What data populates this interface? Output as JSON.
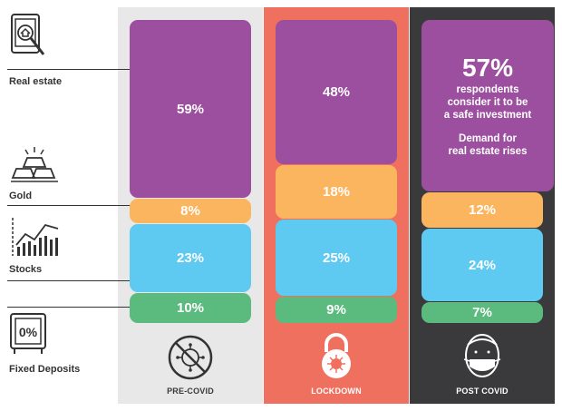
{
  "chart_data": {
    "type": "bar",
    "stacked": true,
    "categories": [
      "PRE-COVID",
      "LOCKDOWN",
      "POST COVID"
    ],
    "series": [
      {
        "name": "Real estate",
        "values": [
          59,
          48,
          57
        ]
      },
      {
        "name": "Gold",
        "values": [
          8,
          18,
          12
        ]
      },
      {
        "name": "Stocks",
        "values": [
          23,
          25,
          24
        ]
      },
      {
        "name": "Fixed Deposits",
        "values": [
          10,
          9,
          7
        ]
      }
    ],
    "data_labels": {
      "pre_covid": [
        "59%",
        "8%",
        "23%",
        "10%"
      ],
      "lockdown": [
        "48%",
        "18%",
        "25%",
        "9%"
      ],
      "post_covid": [
        "57%",
        "12%",
        "24%",
        "7%"
      ]
    },
    "post_covid_note": {
      "headline": "57%",
      "line1": "respondents",
      "line2": "consider it to be",
      "line3": "a safe investment",
      "line4": "Demand for",
      "line5": "real estate rises"
    }
  },
  "colors": {
    "real_estate": "#9c4f9f",
    "gold": "#fbb55f",
    "stocks": "#5ec9f1",
    "fixed_deposits": "#5bbb7f",
    "pre_covid_bg": "#e8e8e8",
    "lockdown_bg": "#f07060",
    "post_covid_bg": "#3a3a3c"
  },
  "legend": {
    "real_estate": "Real estate",
    "gold": "Gold",
    "stocks": "Stocks",
    "fixed_deposits": "Fixed Deposits"
  },
  "icons": {
    "real_estate": "house-tablet-search-icon",
    "gold": "gold-bars-icon",
    "stocks": "stock-chart-icon",
    "fixed_deposits": "safe-percent-icon",
    "pre_covid": "no-virus-icon",
    "lockdown": "lock-virus-icon",
    "post_covid": "mask-face-icon"
  }
}
